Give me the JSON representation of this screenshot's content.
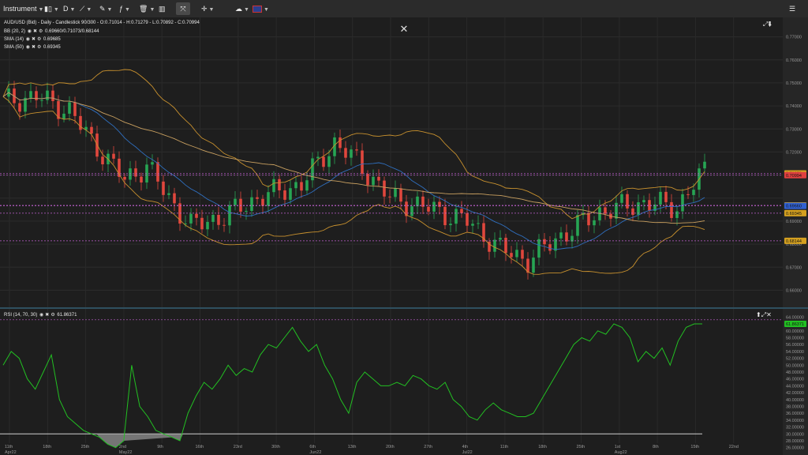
{
  "toolbar": {
    "instrument_label": "Instrument",
    "timeframe_label": "D",
    "flag_icon": "uk-flag-icon"
  },
  "main": {
    "legend": {
      "title": "AUD/USD (Bid) - Daily - Candlestick",
      "ohlc": "90/300 - O:0.71014 - H:0.71279 - L:0.70892 - C:0.70994",
      "bb_label": "BB (20, 2)",
      "bb_values": "0.69660/0.71073/0.68144",
      "sma14_label": "SMA (14)",
      "sma14_value": "0.69685",
      "sma50_label": "SMA (50)",
      "sma50_value": "0.69345"
    },
    "price_axis": [
      "0.77000",
      "0.76000",
      "0.75000",
      "0.74000",
      "0.73000",
      "0.72000",
      "0.69000",
      "0.68000",
      "0.67000",
      "0.66000"
    ],
    "markers": [
      {
        "label": "0.71073",
        "color": "#d4a020",
        "price": 0.71073
      },
      {
        "label": "0.70994",
        "color": "#e04040",
        "price": 0.70994
      },
      {
        "label": "0.69685",
        "color": "#d4a020",
        "price": 0.69685
      },
      {
        "label": "0.69660",
        "color": "#3060d0",
        "price": 0.6966
      },
      {
        "label": "0.69345",
        "color": "#d4a020",
        "price": 0.69345
      },
      {
        "label": "0.68144",
        "color": "#d4a020",
        "price": 0.68144
      }
    ],
    "date_axis": [
      "11th Apr22",
      "18th",
      "25th",
      "2nd May22",
      "9th",
      "16th",
      "23rd",
      "30th",
      "6th Jun22",
      "13th",
      "20th",
      "27th",
      "4th Jul22",
      "11th",
      "18th",
      "25th",
      "1st Aug22",
      "8th",
      "15th",
      "22nd"
    ],
    "colors": {
      "up": "#27a554",
      "down": "#e0473d",
      "bb": "#c7902e",
      "sma14": "#c9a060",
      "sma50": "#2f6fbf",
      "hline": "#c060d0"
    }
  },
  "rsi": {
    "label": "RSI (14, 70, 30)",
    "value": "61.86371",
    "axis": [
      "64.00000",
      "62.00000",
      "60.00000",
      "58.00000",
      "56.00000",
      "54.00000",
      "52.00000",
      "50.00000",
      "48.00000",
      "46.00000",
      "44.00000",
      "42.00000",
      "40.00000",
      "38.00000",
      "36.00000",
      "34.00000",
      "32.00000",
      "30.00000",
      "28.00000",
      "26.00000"
    ],
    "values": [
      50,
      54,
      52,
      46,
      43,
      48,
      53,
      40,
      35,
      33,
      31,
      30,
      29,
      27,
      26,
      28,
      50,
      38,
      35,
      31,
      30,
      29,
      28,
      36,
      41,
      45,
      43,
      46,
      50,
      47,
      49,
      48,
      53,
      56,
      55,
      58,
      61,
      57,
      54,
      56,
      50,
      46,
      40,
      36,
      45,
      48,
      46,
      44,
      44,
      45,
      44,
      47,
      46,
      44,
      43,
      45,
      40,
      38,
      35,
      34,
      37,
      39,
      37,
      36,
      35,
      35,
      36,
      40,
      44,
      48,
      52,
      56,
      58,
      57,
      60,
      59,
      62,
      61,
      58,
      51,
      54,
      52,
      55,
      50,
      57,
      61,
      62,
      62
    ],
    "line_color": "#22c022",
    "value_color": "#22c022"
  }
}
